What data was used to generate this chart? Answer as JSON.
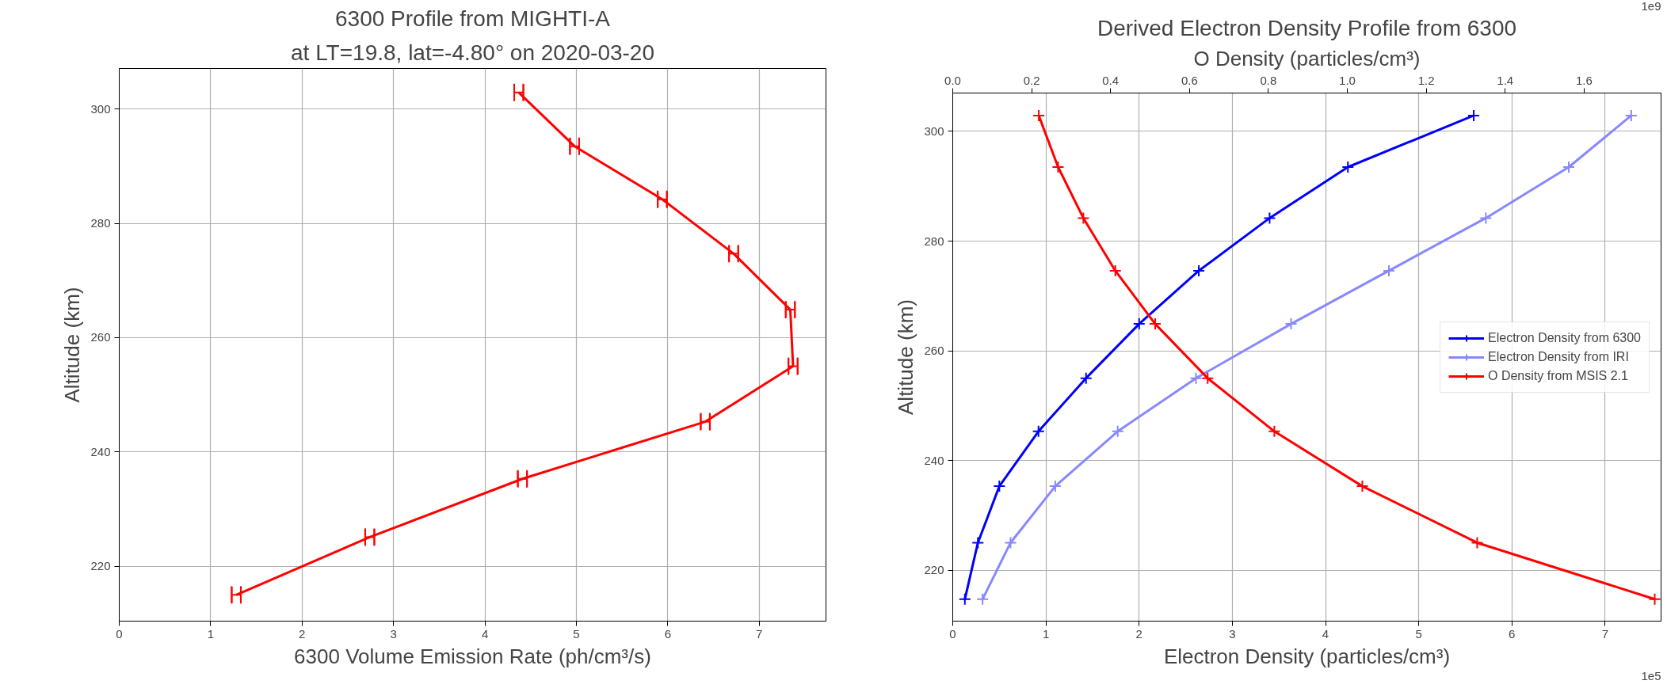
{
  "chart_data": [
    {
      "type": "line",
      "title": "6300 Profile from MIGHTI-A",
      "subtitle": "at LT=19.8, lat=-4.80° on 2020-03-20",
      "xlabel": "6300 Volume Emission Rate (ph/cm³/s)",
      "ylabel": "Altitude (km)",
      "x": [
        4.37,
        4.98,
        5.94,
        6.72,
        7.34,
        7.37,
        6.41,
        4.41,
        2.74,
        1.28
      ],
      "values": [
        302.9,
        293.5,
        284.2,
        274.7,
        264.9,
        255.0,
        245.3,
        235.3,
        225.1,
        215.0
      ],
      "xerrors": [
        0.05,
        0.05,
        0.05,
        0.05,
        0.05,
        0.05,
        0.05,
        0.05,
        0.05,
        0.05
      ],
      "color": "#ff0000",
      "marker": "none",
      "xlim": [
        0,
        7.73
      ],
      "ylim": [
        210.4,
        307.1
      ],
      "xticks": [
        0,
        1,
        2,
        3,
        4,
        5,
        6,
        7
      ],
      "yticks": [
        220,
        240,
        260,
        280,
        300
      ],
      "grid": true
    },
    {
      "type": "line",
      "title": "Derived Electron Density Profile from 6300",
      "xlabel": "Electron Density (particles/cm³)",
      "x2label": "O Density (particles/cm³)",
      "ylabel": "Altitude (km)",
      "series": [
        {
          "name": "Electron Density from 6300",
          "color": "#0000ff",
          "x": [
            5.59,
            4.24,
            3.4,
            2.64,
            2.0,
            1.43,
            0.92,
            0.5,
            0.27,
            0.13
          ],
          "values": [
            302.9,
            293.5,
            284.2,
            274.6,
            264.9,
            255.0,
            245.3,
            235.3,
            225.0,
            214.7
          ]
        },
        {
          "name": "Electron Density from IRI",
          "color": "#8888ff",
          "x": [
            7.28,
            6.61,
            5.72,
            4.68,
            3.63,
            2.61,
            1.77,
            1.1,
            0.62,
            0.32
          ],
          "values": [
            302.9,
            293.5,
            284.2,
            274.6,
            264.9,
            255.0,
            245.3,
            235.3,
            225.0,
            214.7
          ]
        },
        {
          "name": "O Density from MSIS 2.1",
          "color": "#ff0000",
          "axis": "x2",
          "x": [
            0.218,
            0.267,
            0.331,
            0.412,
            0.513,
            0.646,
            0.815,
            1.038,
            1.329,
            1.779
          ],
          "values": [
            302.9,
            293.5,
            284.2,
            274.6,
            264.9,
            255.0,
            245.3,
            235.3,
            225.0,
            214.7
          ]
        }
      ],
      "marker": "cross",
      "legend": "right",
      "xlim": [
        0,
        7.6
      ],
      "xticks": [
        0,
        1,
        2,
        3,
        4,
        5,
        6,
        7
      ],
      "x2lim": [
        0,
        1.795
      ],
      "x2ticks": [
        {
          "value": 0,
          "label": "0.0"
        },
        {
          "value": 0.2,
          "label": "0.2"
        },
        {
          "value": 0.4,
          "label": "0.4"
        },
        {
          "value": 0.6,
          "label": "0.6"
        },
        {
          "value": 0.8,
          "label": "0.8"
        },
        {
          "value": 1.0,
          "label": "1.0"
        },
        {
          "value": 1.2,
          "label": "1.2"
        },
        {
          "value": 1.4,
          "label": "1.4"
        },
        {
          "value": 1.6,
          "label": "1.6"
        }
      ],
      "ylim": [
        210.7,
        307.0
      ],
      "yticks": [
        220,
        240,
        260,
        280,
        300
      ],
      "grid": true,
      "annotations": [
        "1e5",
        "1e9"
      ]
    }
  ]
}
